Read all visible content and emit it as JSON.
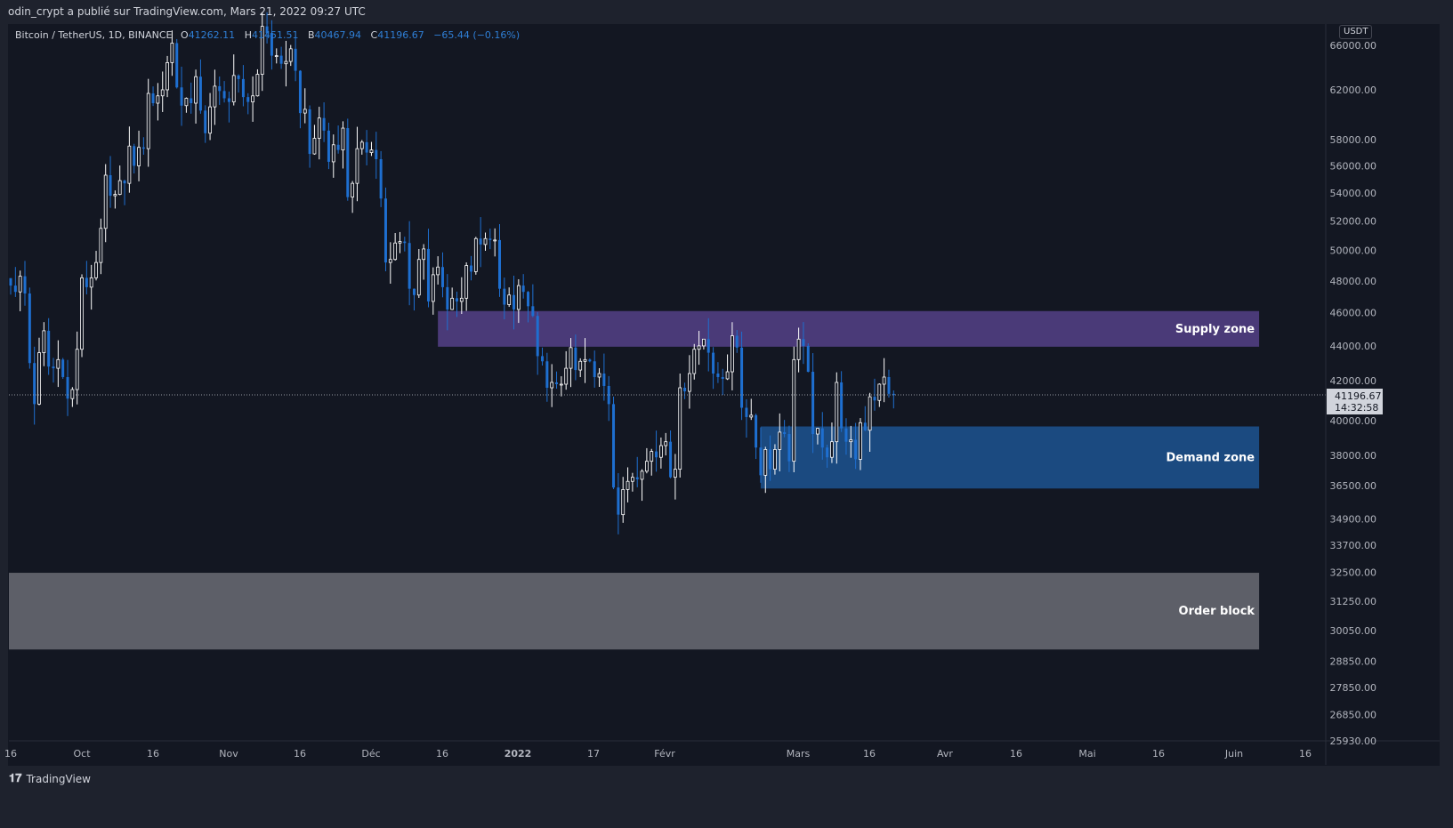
{
  "header": {
    "published": "odin_crypt a publié sur TradingView.com, Mars 21, 2022 09:27 UTC"
  },
  "legend": {
    "symbol": "Bitcoin / TetherUS, 1D, BINANCE",
    "open_label": "O",
    "open": "41262.11",
    "high_label": "H",
    "high": "41451.51",
    "low_label": "B",
    "low": "40467.94",
    "close_label": "C",
    "close": "41196.67",
    "change": "−65.44 (−0.16%)"
  },
  "currency_button": "USDT",
  "last_price": {
    "price": "41196.67",
    "countdown": "14:32:58"
  },
  "footer": {
    "brand": "TradingView"
  },
  "colors": {
    "up": "#ffffff",
    "down": "#1e6fd0",
    "supply": "#4a3a78",
    "demand": "#1b4a80",
    "order_block": "#5d5f68",
    "background": "#131722"
  },
  "chart_data": {
    "type": "candlestick",
    "scale": "log",
    "grid": false,
    "x_tick_labels": [
      "16",
      "Oct",
      "16",
      "Nov",
      "16",
      "Déc",
      "16",
      "2022",
      "17",
      "Févr",
      "Mars",
      "16",
      "Avr",
      "16",
      "Mai",
      "16",
      "Juin",
      "16"
    ],
    "y_tick_labels": [
      "66000.00",
      "62000.00",
      "58000.00",
      "56000.00",
      "54000.00",
      "52000.00",
      "50000.00",
      "48000.00",
      "46000.00",
      "44000.00",
      "42000.00",
      "40000.00",
      "38000.00",
      "36500.00",
      "34900.00",
      "33700.00",
      "32500.00",
      "31250.00",
      "30050.00",
      "28850.00",
      "27850.00",
      "26850.00",
      "25930.00"
    ],
    "first_candle": "2021-09-16",
    "closes": [
      47700,
      47300,
      48300,
      47200,
      43000,
      40700,
      43600,
      44900,
      42800,
      42700,
      43200,
      42200,
      41000,
      41500,
      43800,
      48200,
      47600,
      48200,
      49200,
      51500,
      55300,
      53800,
      53900,
      54900,
      54700,
      57500,
      56000,
      57400,
      57300,
      61700,
      60900,
      61500,
      62000,
      64300,
      66000,
      62200,
      60700,
      61300,
      60900,
      63100,
      60300,
      58500,
      60600,
      62300,
      61900,
      61300,
      61000,
      63200,
      62900,
      61400,
      61000,
      61500,
      63300,
      67500,
      66900,
      64900,
      64900,
      64200,
      64400,
      65500,
      63600,
      60100,
      60400,
      56900,
      58100,
      59700,
      58700,
      56300,
      57600,
      57200,
      58900,
      53700,
      54700,
      57300,
      57800,
      57000,
      57200,
      56500,
      53600,
      49200,
      49400,
      50500,
      50600,
      50500,
      47500,
      47100,
      49400,
      50100,
      46700,
      48400,
      48900,
      47600,
      46200,
      46900,
      46700,
      46900,
      49000,
      48600,
      50800,
      50400,
      50800,
      50700,
      50700,
      47500,
      46500,
      47100,
      46200,
      47700,
      47300,
      46400,
      45800,
      43400,
      43100,
      41600,
      41900,
      41800,
      41800,
      42700,
      43900,
      42600,
      43100,
      43200,
      43100,
      42200,
      42400,
      41700,
      40700,
      36400,
      35100,
      36300,
      36700,
      36900,
      36800,
      37200,
      37700,
      38200,
      37900,
      38500,
      38700,
      36900,
      37300,
      41600,
      41400,
      42400,
      43800,
      44000,
      44400,
      43600,
      42400,
      42200,
      42100,
      42500,
      44600,
      43900,
      40500,
      40000,
      40100,
      38400,
      37000,
      38300,
      37300,
      38300,
      39200,
      39100,
      37700,
      43200,
      44400,
      44000,
      42500,
      39100,
      39400,
      38400,
      37900,
      38700,
      41900,
      39400,
      38700,
      38800,
      37800,
      39700,
      39300,
      41100,
      40900,
      41800,
      42200,
      41262.11,
      41196.67
    ],
    "last_candle": {
      "open": 41262.11,
      "high": 41451.51,
      "low": 40467.94,
      "close": 41196.67
    },
    "zones": [
      {
        "label": "Supply zone",
        "from": "2021-12-15",
        "to": "2022-06-06",
        "top": 46100,
        "bottom": 43950,
        "color": "#4a3a78"
      },
      {
        "label": "Demand zone",
        "from": "2022-02-21",
        "to": "2022-06-06",
        "top": 39500,
        "bottom": 36350,
        "color": "#1b4a80"
      },
      {
        "label": "Order block",
        "from": "2021-09-15",
        "to": "2022-06-06",
        "top": 32470,
        "bottom": 29300,
        "color": "#5d5f68"
      }
    ]
  }
}
